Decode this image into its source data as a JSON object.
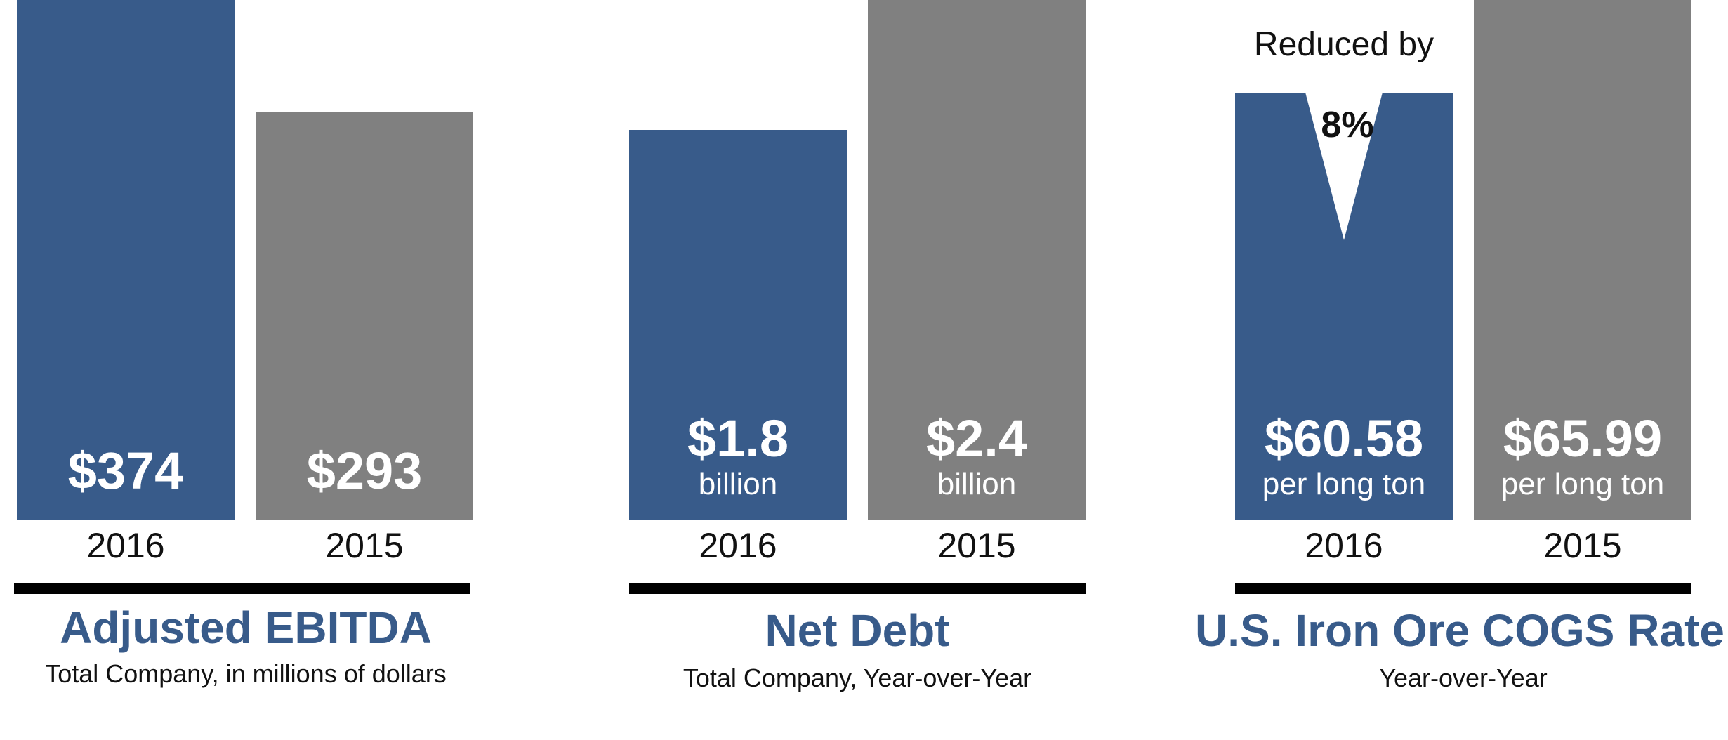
{
  "colors": {
    "current": "#385b8a",
    "prior": "#808080",
    "title": "#385b8a",
    "rule": "#000000",
    "text": "#111111"
  },
  "chart_data": [
    {
      "type": "bar",
      "title": "Adjusted EBITDA",
      "subtitle": "Total Company, in millions of dollars",
      "categories": [
        "2016",
        "2015"
      ],
      "values": [
        374,
        293
      ],
      "value_labels": [
        "$374",
        "$293"
      ],
      "unit_labels": [
        "",
        ""
      ],
      "ylim": [
        0,
        374
      ],
      "grid": false
    },
    {
      "type": "bar",
      "title": "Net Debt",
      "subtitle": "Total Company, Year-over-Year",
      "categories": [
        "2016",
        "2015"
      ],
      "values": [
        1.8,
        2.4
      ],
      "value_labels": [
        "$1.8",
        "$2.4"
      ],
      "unit_labels": [
        "billion",
        "billion"
      ],
      "ylim": [
        0,
        2.4
      ],
      "grid": false
    },
    {
      "type": "bar",
      "title": "U.S. Iron Ore COGS Rate",
      "subtitle": "Year-over-Year",
      "categories": [
        "2016",
        "2015"
      ],
      "values": [
        60.58,
        65.99
      ],
      "value_labels": [
        "$60.58",
        "$65.99"
      ],
      "unit_labels": [
        "per long ton",
        "per long ton"
      ],
      "ylim": [
        0,
        65.99
      ],
      "grid": false,
      "annotation": {
        "text": "Reduced by",
        "value": "8%"
      }
    }
  ]
}
